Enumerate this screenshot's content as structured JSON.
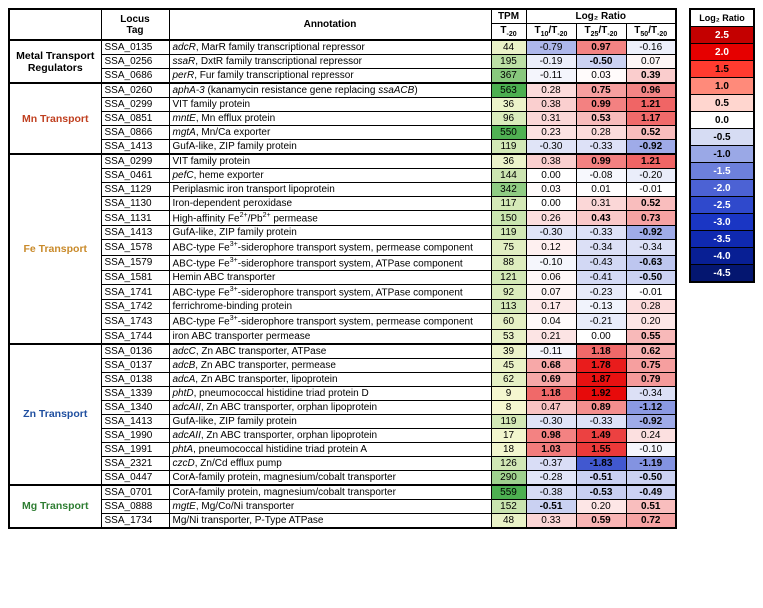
{
  "headers": {
    "locus": "Locus Tag",
    "annotation": "Annotation",
    "tpm": "TPM",
    "log2ratio": "Log₂ Ratio",
    "tpm_sub": "T<sub>-20</sub>",
    "r1": "T<sub>10</sub>/T<sub>-20</sub>",
    "r2": "T<sub>25</sub>/T<sub>-20</sub>",
    "r3": "T<sub>50</sub>/T<sub>-20</sub>"
  },
  "categories": [
    {
      "label": "Metal Transport<br>Regulators",
      "color": "#000000",
      "rows": [
        0,
        1,
        2
      ]
    },
    {
      "label": "Mn Transport",
      "color": "#c04020",
      "rows": [
        3,
        4,
        5,
        6,
        7
      ]
    },
    {
      "label": "Fe Transport",
      "color": "#c98a2a",
      "rows": [
        8,
        9,
        10,
        11,
        12,
        13,
        14,
        15,
        16,
        17,
        18,
        19,
        20
      ]
    },
    {
      "label": "Zn Transport",
      "color": "#1f4fa0",
      "rows": [
        21,
        22,
        23,
        24,
        25,
        26,
        27,
        28,
        29,
        30
      ]
    },
    {
      "label": "Mg Transport",
      "color": "#2e7d32",
      "rows": [
        31,
        32,
        33,
        34
      ]
    }
  ],
  "rows": [
    {
      "locus": "SSA_0135",
      "annot": "<i>adcR</i>, MarR family transcriptional repressor",
      "tpm": 44,
      "r": [
        -0.79,
        0.97,
        -0.16
      ],
      "bold": [
        false,
        true,
        false
      ]
    },
    {
      "locus": "SSA_0256",
      "annot": "<i>ssaR</i>, DxtR family transcriptional repressor",
      "tpm": 195,
      "r": [
        -0.19,
        -0.5,
        0.07
      ],
      "bold": [
        false,
        true,
        false
      ]
    },
    {
      "locus": "SSA_0686",
      "annot": "<i>perR</i>, Fur family transcriptional repressor",
      "tpm": 367,
      "r": [
        -0.11,
        0.03,
        0.39
      ],
      "bold": [
        false,
        false,
        true
      ]
    },
    {
      "locus": "SSA_0260",
      "annot": "<i>aphA-3</i> (kanamycin resistance gene replacing <i>ssaACB</i>)",
      "tpm": 563,
      "r": [
        0.28,
        0.75,
        0.96
      ],
      "bold": [
        false,
        true,
        true
      ]
    },
    {
      "locus": "SSA_0299",
      "annot": "VIT family protein",
      "tpm": 36,
      "r": [
        0.38,
        0.99,
        1.21
      ],
      "bold": [
        false,
        true,
        true
      ]
    },
    {
      "locus": "SSA_0851",
      "annot": "<i>mntE</i>, Mn efflux protein",
      "tpm": 96,
      "r": [
        0.31,
        0.53,
        1.17
      ],
      "bold": [
        false,
        true,
        true
      ]
    },
    {
      "locus": "SSA_0866",
      "annot": "<i>mgtA</i>, Mn/Ca exporter",
      "tpm": 550,
      "r": [
        0.23,
        0.28,
        0.52
      ],
      "bold": [
        false,
        false,
        true
      ]
    },
    {
      "locus": "SSA_1413",
      "annot": "GufA-like, ZIP family protein",
      "tpm": 119,
      "r": [
        -0.3,
        -0.33,
        -0.92
      ],
      "bold": [
        false,
        false,
        true
      ]
    },
    {
      "locus": "SSA_0299",
      "annot": "VIT family protein",
      "tpm": 36,
      "r": [
        0.38,
        0.99,
        1.21
      ],
      "bold": [
        false,
        true,
        true
      ]
    },
    {
      "locus": "SSA_0461",
      "annot": "<i>pefC</i>, heme exporter",
      "tpm": 144,
      "r": [
        0.0,
        -0.08,
        -0.2
      ],
      "bold": [
        false,
        false,
        false
      ]
    },
    {
      "locus": "SSA_1129",
      "annot": "Periplasmic iron transport lipoprotein",
      "tpm": 342,
      "r": [
        0.03,
        0.01,
        -0.01
      ],
      "bold": [
        false,
        false,
        false
      ]
    },
    {
      "locus": "SSA_1130",
      "annot": "Iron-dependent peroxidase",
      "tpm": 117,
      "r": [
        0.0,
        0.31,
        0.52
      ],
      "bold": [
        false,
        false,
        true
      ]
    },
    {
      "locus": "SSA_1131",
      "annot": "High-affinity Fe<sup>2+</sup>/Pb<sup>2+</sup> permease",
      "tpm": 150,
      "r": [
        0.26,
        0.43,
        0.73
      ],
      "bold": [
        false,
        true,
        true
      ]
    },
    {
      "locus": "SSA_1413",
      "annot": "GufA-like, ZIP family protein",
      "tpm": 119,
      "r": [
        -0.3,
        -0.33,
        -0.92
      ],
      "bold": [
        false,
        false,
        true
      ]
    },
    {
      "locus": "SSA_1578",
      "annot": "ABC-type Fe<sup>3+</sup>-siderophore transport system, permease component",
      "tpm": 75,
      "r": [
        0.12,
        -0.34,
        -0.34
      ],
      "bold": [
        false,
        false,
        false
      ]
    },
    {
      "locus": "SSA_1579",
      "annot": "ABC-type Fe<sup>3+</sup>-siderophore transport system, ATPase component",
      "tpm": 88,
      "r": [
        -0.1,
        -0.43,
        -0.63
      ],
      "bold": [
        false,
        false,
        true
      ]
    },
    {
      "locus": "SSA_1581",
      "annot": "Hemin ABC transporter",
      "tpm": 121,
      "r": [
        0.06,
        -0.41,
        -0.5
      ],
      "bold": [
        false,
        false,
        true
      ]
    },
    {
      "locus": "SSA_1741",
      "annot": "ABC-type Fe<sup>3+</sup>-siderophore transport system, ATPase component",
      "tpm": 92,
      "r": [
        0.07,
        -0.23,
        -0.01
      ],
      "bold": [
        false,
        false,
        false
      ]
    },
    {
      "locus": "SSA_1742",
      "annot": "ferrichrome-binding protein",
      "tpm": 113,
      "r": [
        0.17,
        -0.13,
        0.28
      ],
      "bold": [
        false,
        false,
        false
      ]
    },
    {
      "locus": "SSA_1743",
      "annot": "ABC-type Fe<sup>3+</sup>-siderophore transport system, permease component",
      "tpm": 60,
      "r": [
        0.04,
        -0.21,
        0.2
      ],
      "bold": [
        false,
        false,
        false
      ]
    },
    {
      "locus": "SSA_1744",
      "annot": "iron ABC transporter permease",
      "tpm": 53,
      "r": [
        0.21,
        0.0,
        0.55
      ],
      "bold": [
        false,
        false,
        true
      ]
    },
    {
      "locus": "SSA_0136",
      "annot": "<i>adcC</i>, Zn ABC transporter, ATPase",
      "tpm": 39,
      "r": [
        -0.11,
        1.18,
        0.62
      ],
      "bold": [
        false,
        true,
        true
      ]
    },
    {
      "locus": "SSA_0137",
      "annot": "<i>adcB</i>, Zn ABC transporter, permease",
      "tpm": 45,
      "r": [
        0.68,
        1.78,
        0.75
      ],
      "bold": [
        true,
        true,
        true
      ]
    },
    {
      "locus": "SSA_0138",
      "annot": "<i>adcA</i>, Zn ABC transporter, lipoprotein",
      "tpm": 62,
      "r": [
        0.69,
        1.87,
        0.79
      ],
      "bold": [
        true,
        true,
        true
      ]
    },
    {
      "locus": "SSA_1339",
      "annot": "<i>phtD</i>, pneumococcal histidine triad protein D",
      "tpm": 9,
      "r": [
        1.18,
        1.92,
        -0.34
      ],
      "bold": [
        true,
        true,
        false
      ]
    },
    {
      "locus": "SSA_1340",
      "annot": "<i>adcAII</i>, Zn ABC transporter, orphan lipoprotein",
      "tpm": 8,
      "r": [
        0.47,
        0.89,
        -1.12
      ],
      "bold": [
        false,
        true,
        true
      ]
    },
    {
      "locus": "SSA_1413",
      "annot": "GufA-like, ZIP family protein",
      "tpm": 119,
      "r": [
        -0.3,
        -0.33,
        -0.92
      ],
      "bold": [
        false,
        false,
        true
      ]
    },
    {
      "locus": "SSA_1990",
      "annot": "<i>adcAII</i>, Zn ABC transporter, orphan lipoprotein",
      "tpm": 17,
      "r": [
        0.98,
        1.49,
        0.24
      ],
      "bold": [
        true,
        true,
        false
      ]
    },
    {
      "locus": "SSA_1991",
      "annot": "<i>phtA</i>, pneumococcal histidine triad protein A",
      "tpm": 18,
      "r": [
        1.03,
        1.55,
        -0.1
      ],
      "bold": [
        true,
        true,
        false
      ]
    },
    {
      "locus": "SSA_2321",
      "annot": "<i>czcD</i>, Zn/Cd efflux pump",
      "tpm": 126,
      "r": [
        -0.37,
        -1.83,
        -1.19
      ],
      "bold": [
        false,
        true,
        true
      ]
    },
    {
      "locus": "SSA_0447",
      "annot": "CorA-family protein, magnesium/cobalt transporter",
      "tpm": 290,
      "r": [
        -0.28,
        -0.51,
        -0.5
      ],
      "bold": [
        false,
        true,
        true
      ]
    },
    {
      "locus": "SSA_0701",
      "annot": "CorA-family protein, magnesium/cobalt transporter",
      "tpm": 559,
      "r": [
        -0.38,
        -0.53,
        -0.49
      ],
      "bold": [
        false,
        true,
        true
      ]
    },
    {
      "locus": "SSA_0888",
      "annot": "<i>mgtE</i>, Mg/Co/Ni transporter",
      "tpm": 152,
      "r": [
        -0.51,
        0.2,
        0.51
      ],
      "bold": [
        true,
        false,
        true
      ]
    },
    {
      "locus": "SSA_1734",
      "annot": "Mg/Ni transporter, P-Type ATPase",
      "tpm": 48,
      "r": [
        0.33,
        0.59,
        0.72
      ],
      "bold": [
        false,
        true,
        true
      ]
    }
  ],
  "legend": {
    "title": "Log₂ Ratio",
    "stops": [
      {
        "v": "2.5",
        "c": "#c40000",
        "t": "#fff"
      },
      {
        "v": "2.0",
        "c": "#e60000",
        "t": "#fff"
      },
      {
        "v": "1.5",
        "c": "#ff3b2f",
        "t": "#000"
      },
      {
        "v": "1.0",
        "c": "#ff8a7a",
        "t": "#000"
      },
      {
        "v": "0.5",
        "c": "#ffd6cf",
        "t": "#000"
      },
      {
        "v": "0.0",
        "c": "#ffffff",
        "t": "#000"
      },
      {
        "v": "-0.5",
        "c": "#d6dcf3",
        "t": "#000"
      },
      {
        "v": "-1.0",
        "c": "#9aa8e6",
        "t": "#000"
      },
      {
        "v": "-1.5",
        "c": "#6d80dc",
        "t": "#fff"
      },
      {
        "v": "-2.0",
        "c": "#4c62d4",
        "t": "#fff"
      },
      {
        "v": "-2.5",
        "c": "#2f49cc",
        "t": "#fff"
      },
      {
        "v": "-3.0",
        "c": "#1a36c4",
        "t": "#fff"
      },
      {
        "v": "-3.5",
        "c": "#0f29b0",
        "t": "#fff"
      },
      {
        "v": "-4.0",
        "c": "#081f94",
        "t": "#fff"
      },
      {
        "v": "-4.5",
        "c": "#041670",
        "t": "#fff"
      }
    ]
  },
  "colors": {
    "tpm_scale": {
      "min": 8,
      "max": 563,
      "low": "#f5f7d0",
      "high": "#4caf50"
    },
    "ratio_scale": {
      "neg": "#2f49cc",
      "zero": "#ffffff",
      "pos": "#e60000"
    }
  }
}
